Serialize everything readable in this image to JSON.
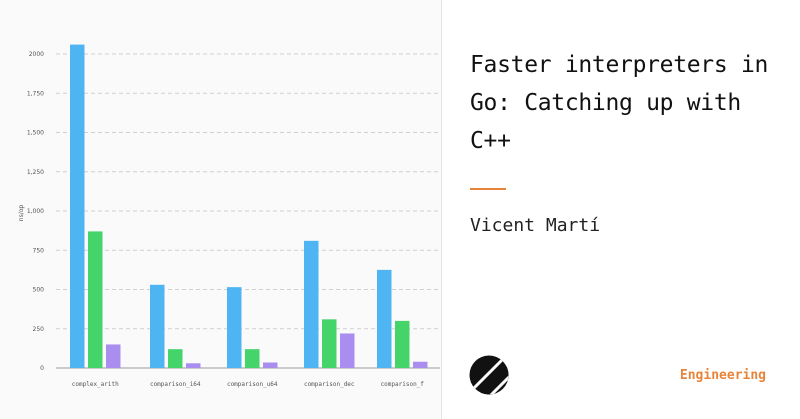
{
  "article": {
    "title": "Faster interpreters in Go: Catching up with C++",
    "author": "Vicent Martí",
    "category": "Engineering"
  },
  "logo": {
    "icon": "planetscale-logo-icon"
  },
  "colors": {
    "accent": "#e8843a",
    "series": [
      "#4fb5f2",
      "#45d46a",
      "#a98ef0"
    ]
  },
  "chart_data": {
    "type": "bar",
    "ylabel": "ns/op",
    "ylim": [
      0,
      2000
    ],
    "yticks": [
      "0",
      "250",
      "500",
      "750",
      "1,000",
      "1,250",
      "1,500",
      "1,750",
      "2000"
    ],
    "categories": [
      "complex_arith",
      "comparison_i64",
      "comparison_u64",
      "comparison_dec",
      "comparison_f"
    ],
    "series": [
      {
        "color": "#4fb5f2",
        "values": [
          2060,
          530,
          515,
          810,
          625
        ]
      },
      {
        "color": "#45d46a",
        "values": [
          870,
          120,
          120,
          310,
          300
        ]
      },
      {
        "color": "#a98ef0",
        "values": [
          150,
          30,
          35,
          220,
          40
        ]
      }
    ],
    "grid": true
  }
}
